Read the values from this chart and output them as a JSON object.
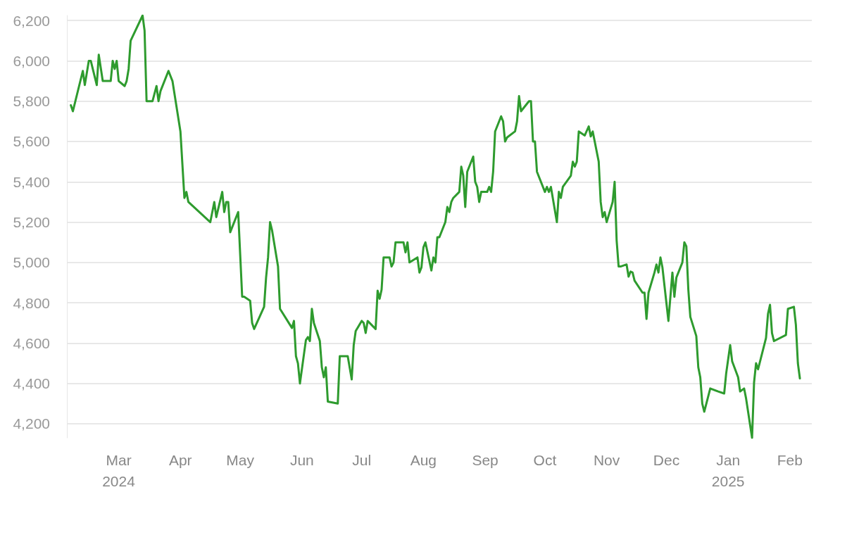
{
  "chart_data": {
    "type": "line",
    "color": "#2e9b2e",
    "grid": "y",
    "marker": "none",
    "line_style": "solid",
    "x": [
      "2024-02-06",
      "2024-02-07",
      "2024-02-12",
      "2024-02-13",
      "2024-02-15",
      "2024-02-16",
      "2024-02-19",
      "2024-02-20",
      "2024-02-22",
      "2024-02-26",
      "2024-02-27",
      "2024-02-28",
      "2024-02-29",
      "2024-03-01",
      "2024-03-04",
      "2024-03-05",
      "2024-03-06",
      "2024-03-07",
      "2024-03-13",
      "2024-03-14",
      "2024-03-15",
      "2024-03-18",
      "2024-03-20",
      "2024-03-21",
      "2024-03-22",
      "2024-03-26",
      "2024-03-28",
      "2024-04-01",
      "2024-04-03",
      "2024-04-04",
      "2024-04-05",
      "2024-04-16",
      "2024-04-18",
      "2024-04-19",
      "2024-04-22",
      "2024-04-23",
      "2024-04-24",
      "2024-04-25",
      "2024-04-26",
      "2024-04-30",
      "2024-05-02",
      "2024-05-03",
      "2024-05-06",
      "2024-05-07",
      "2024-05-08",
      "2024-05-13",
      "2024-05-14",
      "2024-05-15",
      "2024-05-16",
      "2024-05-17",
      "2024-05-20",
      "2024-05-21",
      "2024-05-27",
      "2024-05-28",
      "2024-05-29",
      "2024-05-30",
      "2024-05-31",
      "2024-06-03",
      "2024-06-04",
      "2024-06-05",
      "2024-06-06",
      "2024-06-07",
      "2024-06-10",
      "2024-06-11",
      "2024-06-12",
      "2024-06-13",
      "2024-06-14",
      "2024-06-19",
      "2024-06-20",
      "2024-06-24",
      "2024-06-26",
      "2024-06-27",
      "2024-06-28",
      "2024-07-01",
      "2024-07-02",
      "2024-07-03",
      "2024-07-04",
      "2024-07-08",
      "2024-07-09",
      "2024-07-10",
      "2024-07-11",
      "2024-07-12",
      "2024-07-15",
      "2024-07-16",
      "2024-07-17",
      "2024-07-18",
      "2024-07-22",
      "2024-07-23",
      "2024-07-24",
      "2024-07-25",
      "2024-07-29",
      "2024-07-30",
      "2024-07-31",
      "2024-08-01",
      "2024-08-02",
      "2024-08-05",
      "2024-08-06",
      "2024-08-07",
      "2024-08-08",
      "2024-08-09",
      "2024-08-12",
      "2024-08-13",
      "2024-08-14",
      "2024-08-15",
      "2024-08-16",
      "2024-08-19",
      "2024-08-20",
      "2024-08-21",
      "2024-08-22",
      "2024-08-23",
      "2024-08-26",
      "2024-08-27",
      "2024-08-28",
      "2024-08-29",
      "2024-08-30",
      "2024-09-02",
      "2024-09-03",
      "2024-09-04",
      "2024-09-05",
      "2024-09-06",
      "2024-09-09",
      "2024-09-10",
      "2024-09-11",
      "2024-09-12",
      "2024-09-16",
      "2024-09-17",
      "2024-09-18",
      "2024-09-19",
      "2024-09-23",
      "2024-09-24",
      "2024-09-25",
      "2024-09-26",
      "2024-09-27",
      "2024-10-01",
      "2024-10-02",
      "2024-10-03",
      "2024-10-04",
      "2024-10-07",
      "2024-10-08",
      "2024-10-09",
      "2024-10-10",
      "2024-10-14",
      "2024-10-15",
      "2024-10-16",
      "2024-10-17",
      "2024-10-18",
      "2024-10-21",
      "2024-10-23",
      "2024-10-24",
      "2024-10-25",
      "2024-10-28",
      "2024-10-29",
      "2024-10-30",
      "2024-10-31",
      "2024-11-01",
      "2024-11-04",
      "2024-11-05",
      "2024-11-06",
      "2024-11-07",
      "2024-11-08",
      "2024-11-11",
      "2024-11-12",
      "2024-11-13",
      "2024-11-14",
      "2024-11-15",
      "2024-11-19",
      "2024-11-20",
      "2024-11-21",
      "2024-11-22",
      "2024-11-25",
      "2024-11-26",
      "2024-11-27",
      "2024-11-28",
      "2024-11-29",
      "2024-12-02",
      "2024-12-04",
      "2024-12-05",
      "2024-12-06",
      "2024-12-09",
      "2024-12-10",
      "2024-12-11",
      "2024-12-12",
      "2024-12-13",
      "2024-12-16",
      "2024-12-17",
      "2024-12-18",
      "2024-12-19",
      "2024-12-20",
      "2024-12-23",
      "2024-12-27",
      "2024-12-30",
      "2024-12-31",
      "2025-01-02",
      "2025-01-03",
      "2025-01-06",
      "2025-01-07",
      "2025-01-09",
      "2025-01-10",
      "2025-01-13",
      "2025-01-14",
      "2025-01-15",
      "2025-01-16",
      "2025-01-20",
      "2025-01-21",
      "2025-01-22",
      "2025-01-23",
      "2025-01-24",
      "2025-01-30",
      "2025-01-31",
      "2025-02-03",
      "2025-02-04",
      "2025-02-05",
      "2025-02-06"
    ],
    "values": [
      5780,
      5750,
      5950,
      5880,
      6000,
      6000,
      5880,
      6030,
      5900,
      5900,
      6000,
      5960,
      6000,
      5900,
      5875,
      5900,
      5960,
      6100,
      6225,
      6150,
      5800,
      5800,
      5875,
      5800,
      5850,
      5950,
      5900,
      5650,
      5320,
      5350,
      5300,
      5200,
      5300,
      5225,
      5350,
      5250,
      5300,
      5300,
      5150,
      5250,
      4830,
      4830,
      4810,
      4700,
      4670,
      4780,
      4925,
      5025,
      5200,
      5160,
      4980,
      4770,
      4675,
      4710,
      4535,
      4500,
      4400,
      4615,
      4630,
      4610,
      4770,
      4700,
      4610,
      4480,
      4430,
      4480,
      4310,
      4300,
      4535,
      4535,
      4420,
      4590,
      4660,
      4710,
      4700,
      4650,
      4710,
      4670,
      4860,
      4820,
      4865,
      5025,
      5025,
      4980,
      5000,
      5100,
      5100,
      5050,
      5100,
      5000,
      5025,
      4950,
      4975,
      5075,
      5100,
      4960,
      5025,
      5000,
      5125,
      5125,
      5200,
      5275,
      5250,
      5300,
      5320,
      5350,
      5475,
      5430,
      5275,
      5450,
      5525,
      5400,
      5375,
      5300,
      5350,
      5350,
      5375,
      5350,
      5450,
      5650,
      5725,
      5700,
      5600,
      5620,
      5650,
      5700,
      5825,
      5750,
      5800,
      5800,
      5600,
      5600,
      5450,
      5350,
      5375,
      5350,
      5375,
      5200,
      5350,
      5320,
      5375,
      5430,
      5500,
      5475,
      5500,
      5650,
      5630,
      5675,
      5625,
      5650,
      5500,
      5300,
      5225,
      5250,
      5200,
      5300,
      5400,
      5110,
      4980,
      4980,
      4990,
      4930,
      4955,
      4950,
      4910,
      4850,
      4850,
      4720,
      4850,
      4950,
      4990,
      4950,
      5025,
      4975,
      4710,
      4950,
      4830,
      4925,
      5000,
      5100,
      5080,
      4865,
      4730,
      4635,
      4480,
      4430,
      4300,
      4260,
      4375,
      4360,
      4350,
      4450,
      4590,
      4510,
      4430,
      4360,
      4375,
      4325,
      4130,
      4405,
      4500,
      4470,
      4625,
      4745,
      4790,
      4650,
      4610,
      4640,
      4770,
      4780,
      4690,
      4500,
      4425
    ],
    "xlim": [
      "2024-02-04",
      "2025-02-12"
    ],
    "ylim": [
      4130,
      6225
    ],
    "xticks": [
      {
        "value": "2024-03-01",
        "label": "Mar\n2024"
      },
      {
        "value": "2024-04-01",
        "label": "Apr"
      },
      {
        "value": "2024-05-01",
        "label": "May"
      },
      {
        "value": "2024-06-01",
        "label": "Jun"
      },
      {
        "value": "2024-07-01",
        "label": "Jul"
      },
      {
        "value": "2024-08-01",
        "label": "Aug"
      },
      {
        "value": "2024-09-01",
        "label": "Sep"
      },
      {
        "value": "2024-10-01",
        "label": "Oct"
      },
      {
        "value": "2024-11-01",
        "label": "Nov"
      },
      {
        "value": "2024-12-01",
        "label": "Dec"
      },
      {
        "value": "2025-01-01",
        "label": "Jan\n2025"
      },
      {
        "value": "2025-02-01",
        "label": "Feb"
      }
    ],
    "yticks": [
      {
        "value": 4200,
        "label": "4,200"
      },
      {
        "value": 4400,
        "label": "4,400"
      },
      {
        "value": 4600,
        "label": "4,600"
      },
      {
        "value": 4800,
        "label": "4,800"
      },
      {
        "value": 5000,
        "label": "5,000"
      },
      {
        "value": 5200,
        "label": "5,200"
      },
      {
        "value": 5400,
        "label": "5,400"
      },
      {
        "value": 5600,
        "label": "5,600"
      },
      {
        "value": 5800,
        "label": "5,800"
      },
      {
        "value": 6000,
        "label": "6,000"
      },
      {
        "value": 6200,
        "label": "6,200"
      }
    ]
  }
}
